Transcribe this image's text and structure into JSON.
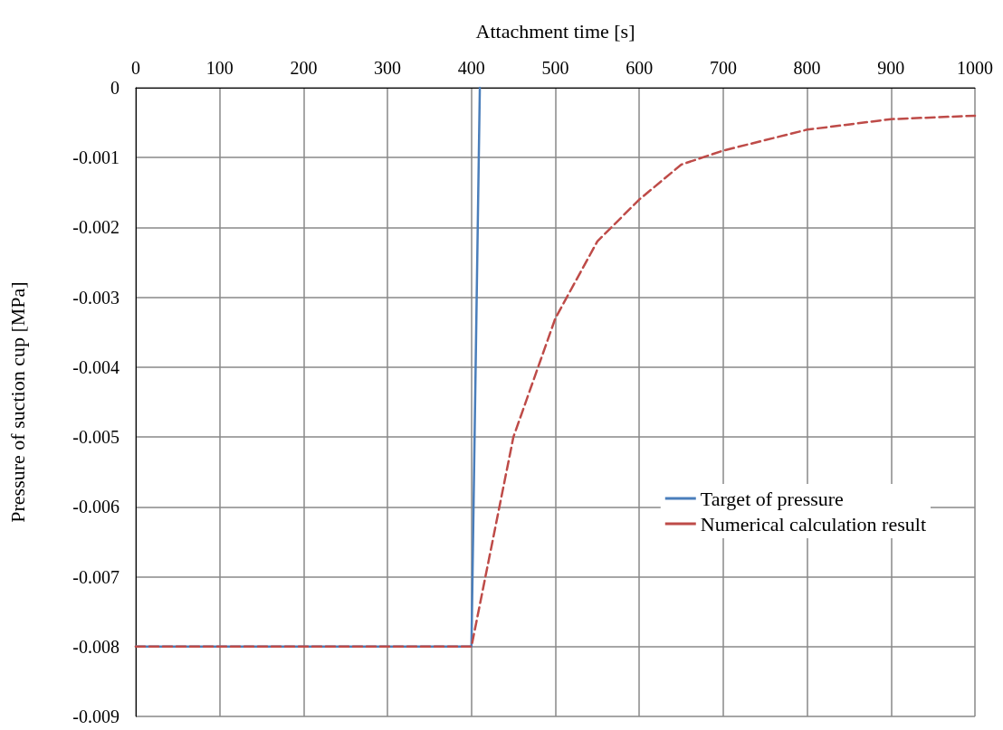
{
  "chart_data": {
    "type": "line",
    "xlabel": "Attachment time [s]",
    "ylabel": "Pressure of suction cup [MPa]",
    "xlim": [
      0,
      1000
    ],
    "xticks": [
      0,
      100,
      200,
      300,
      400,
      500,
      600,
      700,
      800,
      900,
      1000
    ],
    "ylim": [
      -0.009,
      0
    ],
    "yticks": [
      -0.009,
      -0.008,
      -0.007,
      -0.006,
      -0.005,
      -0.004,
      -0.003,
      -0.002,
      -0.001,
      0
    ],
    "grid": true,
    "legend": "right",
    "marker": "none",
    "series": [
      {
        "name": "Target of pressure",
        "color": "#4a7ebb",
        "line_style": "solid",
        "x": [
          0,
          400,
          410
        ],
        "values": [
          -0.008,
          -0.008,
          0
        ]
      },
      {
        "name": "Numerical calculation result",
        "color": "#be4b48",
        "line_style": "dashed",
        "x": [
          0,
          400,
          425,
          450,
          500,
          550,
          600,
          650,
          700,
          800,
          900,
          1000
        ],
        "values": [
          -0.008,
          -0.008,
          -0.0065,
          -0.005,
          -0.0033,
          -0.0022,
          -0.0016,
          -0.0011,
          -0.0009,
          -0.0006,
          -0.00045,
          -0.0004
        ]
      }
    ]
  }
}
